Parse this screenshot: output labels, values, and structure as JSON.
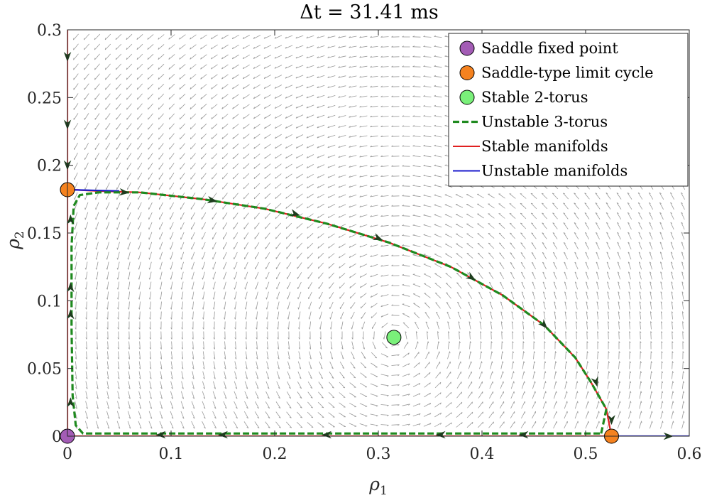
{
  "chart_data": {
    "type": "scatter",
    "title": "Δt = 31.41 ms",
    "xlabel": "ρ1",
    "ylabel": "ρ2",
    "xlim": [
      0,
      0.6
    ],
    "ylim": [
      0,
      0.3
    ],
    "xticks": [
      "0",
      "0.1",
      "0.2",
      "0.3",
      "0.4",
      "0.5",
      "0.6"
    ],
    "yticks": [
      "0",
      "0.05",
      "0.1",
      "0.15",
      "0.2",
      "0.25",
      "0.3"
    ],
    "grid": false,
    "legend_position": "top-right",
    "legend": [
      {
        "label": "Saddle fixed point",
        "kind": "marker",
        "color": "#a35cb5"
      },
      {
        "label": "Saddle-type limit cycle",
        "kind": "marker",
        "color": "#f5821f"
      },
      {
        "label": "Stable 2-torus",
        "kind": "marker",
        "color": "#7af07a"
      },
      {
        "label": "Unstable 3-torus",
        "kind": "dashed",
        "color": "#1f8a1f"
      },
      {
        "label": "Stable manifolds",
        "kind": "line",
        "color": "#e02020"
      },
      {
        "label": "Unstable manifolds",
        "kind": "line",
        "color": "#1a1acc"
      }
    ],
    "points": {
      "saddle_fixed_point": [
        [
          0,
          0
        ]
      ],
      "saddle_limit_cycles": [
        [
          0,
          0.182
        ],
        [
          0.525,
          0
        ]
      ],
      "stable_2_torus": [
        [
          0.315,
          0.073
        ]
      ]
    },
    "manifolds": {
      "stable": [
        {
          "x": [
            0,
            0
          ],
          "y": [
            0.3,
            0
          ]
        },
        {
          "x": [
            0.525,
            0
          ],
          "y": [
            0,
            0
          ]
        },
        {
          "x": [
            0.525,
            0.52,
            0.505,
            0.49,
            0.46,
            0.42,
            0.37,
            0.31,
            0.25,
            0.19,
            0.13,
            0.07,
            0.03,
            0.005,
            0
          ],
          "y": [
            0,
            0.02,
            0.04,
            0.058,
            0.082,
            0.104,
            0.125,
            0.143,
            0.157,
            0.168,
            0.175,
            0.18,
            0.181,
            0.182,
            0.182
          ]
        }
      ],
      "unstable": [
        {
          "x": [
            0.525,
            0.6
          ],
          "y": [
            0,
            0
          ]
        },
        {
          "x": [
            0,
            0.05
          ],
          "y": [
            0.182,
            0.181
          ]
        }
      ]
    },
    "unstable_3_torus": {
      "x": [
        0.515,
        0.52,
        0.505,
        0.49,
        0.46,
        0.42,
        0.37,
        0.31,
        0.25,
        0.19,
        0.13,
        0.07,
        0.03,
        0.012,
        0.006,
        0.004,
        0.004,
        0.005,
        0.008,
        0.015,
        0.04,
        0.1,
        0.2,
        0.3,
        0.4,
        0.5,
        0.515
      ],
      "y": [
        0.002,
        0.02,
        0.04,
        0.058,
        0.082,
        0.104,
        0.125,
        0.143,
        0.157,
        0.168,
        0.175,
        0.18,
        0.18,
        0.178,
        0.17,
        0.14,
        0.08,
        0.03,
        0.008,
        0.002,
        0.002,
        0.002,
        0.002,
        0.002,
        0.002,
        0.002,
        0.002
      ]
    },
    "vector_field": "grey quiver arrows circulating counter-clockwise around the stable 2-torus"
  }
}
